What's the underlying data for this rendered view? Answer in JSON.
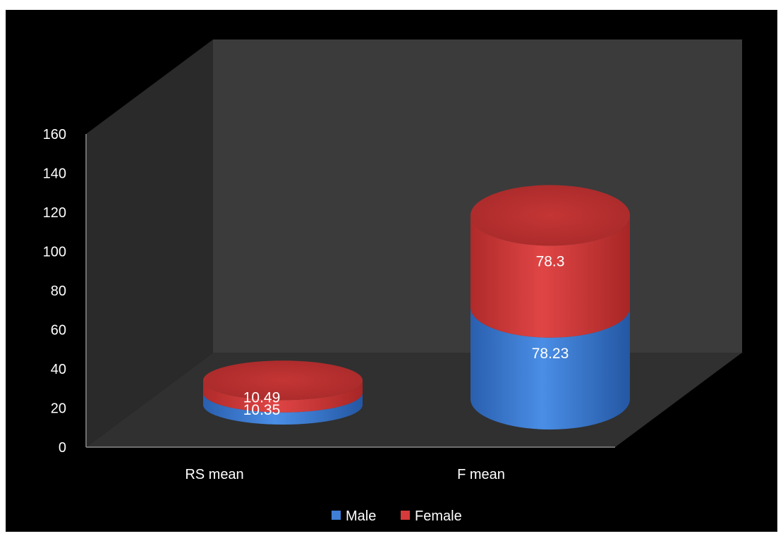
{
  "chart_data": {
    "type": "bar",
    "subtype": "stacked-3d-cylinder",
    "categories": [
      "RS mean",
      "F mean"
    ],
    "series": [
      {
        "name": "Male",
        "values": [
          10.35,
          78.23
        ]
      },
      {
        "name": "Female",
        "values": [
          10.49,
          78.3
        ]
      }
    ],
    "data_labels": [
      [
        "10.35",
        "78.23"
      ],
      [
        "10.49",
        "78.3"
      ]
    ],
    "ylim": [
      0,
      160
    ],
    "yticks": [
      0,
      20,
      40,
      60,
      80,
      100,
      120,
      140,
      160
    ],
    "ytick_labels": [
      "0",
      "20",
      "40",
      "60",
      "80",
      "100",
      "120",
      "140",
      "160"
    ],
    "legend_position": "bottom",
    "grid": false
  },
  "colors": {
    "background": "#000000",
    "back_wall": "#3b3b3b",
    "side_wall": "#2a2a2a",
    "floor": "#303030",
    "male": "#3f7fd6",
    "female": "#d63a3a",
    "text": "#ffffff"
  }
}
